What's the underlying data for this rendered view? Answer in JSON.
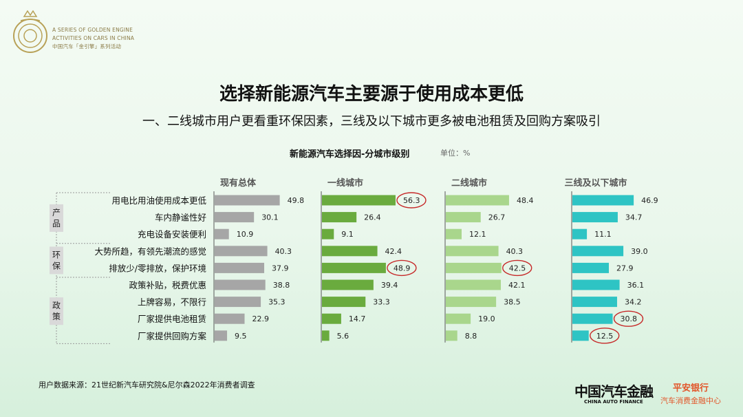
{
  "header": {
    "logo_text": [
      "A SERIES OF GOLDEN ENGINE",
      "ACTIVITIES ON CARS IN CHINA",
      "中国汽车「金引擎」系列活动"
    ]
  },
  "title": "选择新能源汽车主要源于使用成本更低",
  "subtitle": "一、二线城市用户更看重环保因素，三线及以下城市更多被电池租赁及回购方案吸引",
  "chart_title": "新能源汽车选择因-分城市级别",
  "unit": "单位：%",
  "groups": [
    {
      "label": "产品",
      "chars": [
        "产",
        "品"
      ]
    },
    {
      "label": "环保",
      "chars": [
        "环",
        "保"
      ]
    },
    {
      "label": "政策",
      "chars": [
        "政",
        "策"
      ]
    }
  ],
  "source": "用户数据来源：21世纪新汽车研究院&尼尔森2022年消费者调查",
  "brands": {
    "cafin_cn": "中国汽车金融",
    "cafin_en": "CHINA AUTO FINANCE",
    "pingan_l1": "平安银行",
    "pingan_l2": "汽车消费金融中心"
  },
  "colors": {
    "total": "#a6a6a6",
    "tier1": "#6aab3e",
    "tier2": "#a9d68c",
    "tier3": "#2ec4c4",
    "highlight": "#c62828"
  },
  "chart_data": {
    "type": "bar",
    "orientation": "horizontal",
    "categories": [
      "用电比用油使用成本更低",
      "车内静谧性好",
      "充电设备安装便利",
      "大势所趋，有领先潮流的感觉",
      "排放少/零排放，保护环境",
      "政策补贴，税费优惠",
      "上牌容易，不限行",
      "厂家提供电池租赁",
      "厂家提供回购方案"
    ],
    "series": [
      {
        "name": "现有总体",
        "values": [
          49.8,
          30.1,
          10.9,
          40.3,
          37.9,
          38.8,
          35.3,
          22.9,
          9.5
        ],
        "highlight": []
      },
      {
        "name": "一线城市",
        "values": [
          56.3,
          26.4,
          9.1,
          42.4,
          48.9,
          39.4,
          33.3,
          14.7,
          5.6
        ],
        "highlight": [
          0,
          4
        ]
      },
      {
        "name": "二线城市",
        "values": [
          48.4,
          26.7,
          12.1,
          40.3,
          42.5,
          42.1,
          38.5,
          19.0,
          8.8
        ],
        "highlight": [
          4
        ]
      },
      {
        "name": "三线及以下城市",
        "values": [
          46.9,
          34.7,
          11.1,
          39.0,
          27.9,
          36.1,
          34.2,
          30.8,
          12.5
        ],
        "highlight": [
          7,
          8
        ]
      }
    ]
  }
}
